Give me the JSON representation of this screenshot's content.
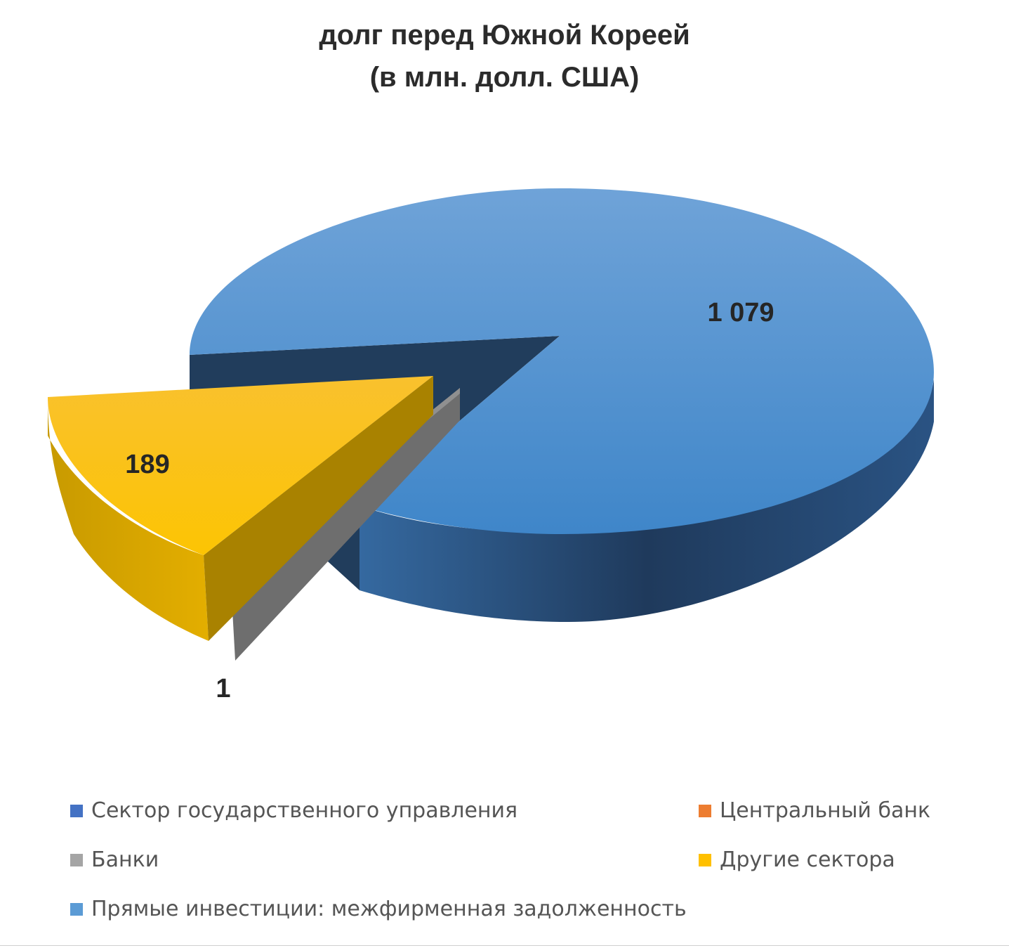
{
  "chart_data": {
    "type": "pie",
    "title_line1": "долг перед Южной Кореей",
    "title_line2": "(в млн. долл. США)",
    "slices": [
      {
        "name": "Сектор государственного управления",
        "value": 0,
        "label": "",
        "color": "#4472C4"
      },
      {
        "name": "Центральный банк",
        "value": 0,
        "label": "",
        "color": "#ED7D31"
      },
      {
        "name": "Банки",
        "value": 1,
        "label": "1",
        "color": "#A5A5A5"
      },
      {
        "name": "Другие сектора",
        "value": 189,
        "label": "189",
        "color": "#FFC000"
      },
      {
        "name": "Прямые инвестиции: межфирменная задолженность",
        "value": 1079,
        "label": "1 079",
        "color": "#5B9BD5"
      }
    ],
    "three_d": true,
    "legend_position": "bottom"
  }
}
